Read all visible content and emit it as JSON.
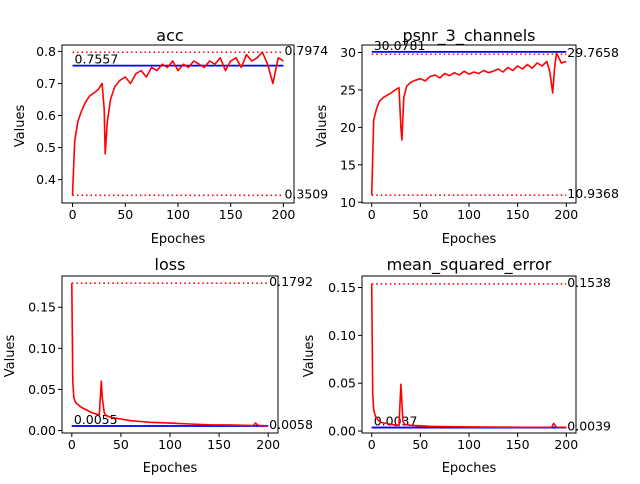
{
  "colors": {
    "curve": "#ff0000",
    "ref_dotted": "#ff0000",
    "reference": "#0000ff",
    "axes": "#000000"
  },
  "chart_data": [
    {
      "type": "line",
      "title": "acc",
      "xlabel": "Epoches",
      "ylabel": "Values",
      "xlim": [
        -10,
        210
      ],
      "ylim": [
        0.327,
        0.82
      ],
      "xticks": [
        0,
        50,
        100,
        150,
        200
      ],
      "yticks": [
        0.4,
        0.5,
        0.6,
        0.7,
        0.8
      ],
      "ytick_labels": [
        "0.4",
        "0.5",
        "0.6",
        "0.7",
        "0.8"
      ],
      "grid": false,
      "x": [
        0,
        2,
        5,
        8,
        12,
        16,
        20,
        24,
        28,
        30,
        31,
        33,
        36,
        40,
        45,
        50,
        55,
        60,
        65,
        70,
        75,
        80,
        85,
        90,
        95,
        100,
        105,
        110,
        115,
        120,
        125,
        130,
        135,
        140,
        145,
        150,
        155,
        160,
        165,
        170,
        175,
        180,
        185,
        190,
        195,
        200
      ],
      "series": [
        {
          "values": [
            0.3509,
            0.52,
            0.58,
            0.61,
            0.64,
            0.66,
            0.67,
            0.68,
            0.7,
            0.62,
            0.48,
            0.58,
            0.65,
            0.69,
            0.71,
            0.72,
            0.7,
            0.73,
            0.74,
            0.72,
            0.75,
            0.74,
            0.76,
            0.75,
            0.77,
            0.74,
            0.76,
            0.75,
            0.77,
            0.76,
            0.75,
            0.77,
            0.76,
            0.78,
            0.74,
            0.77,
            0.78,
            0.75,
            0.79,
            0.77,
            0.78,
            0.7974,
            0.76,
            0.7,
            0.78,
            0.77
          ]
        }
      ],
      "ref_lines": [
        {
          "kind": "dotted",
          "value": 0.7974,
          "label": "0.7974"
        },
        {
          "kind": "dotted",
          "value": 0.3509,
          "label": "0.3509"
        },
        {
          "kind": "solid",
          "value": 0.7557,
          "label": "0.7557"
        }
      ]
    },
    {
      "type": "line",
      "title": "psnr_3_channels",
      "xlabel": "Epoches",
      "ylabel": "Values",
      "xlim": [
        -10,
        210
      ],
      "ylim": [
        9.9,
        31.0
      ],
      "xticks": [
        0,
        50,
        100,
        150,
        200
      ],
      "yticks": [
        10,
        15,
        20,
        25,
        30
      ],
      "ytick_labels": [
        "10",
        "15",
        "20",
        "25",
        "30"
      ],
      "grid": false,
      "x": [
        0,
        2,
        5,
        8,
        12,
        16,
        20,
        24,
        28,
        30,
        31,
        33,
        36,
        40,
        45,
        50,
        55,
        60,
        65,
        70,
        75,
        80,
        85,
        90,
        95,
        100,
        105,
        110,
        115,
        120,
        125,
        130,
        135,
        140,
        145,
        150,
        155,
        160,
        165,
        170,
        175,
        180,
        183,
        186,
        188,
        190,
        195,
        200
      ],
      "series": [
        {
          "values": [
            10.9368,
            21.0,
            22.5,
            23.5,
            24.0,
            24.3,
            24.6,
            25.0,
            25.3,
            20.0,
            18.3,
            24.0,
            25.5,
            26.0,
            26.3,
            26.5,
            26.2,
            26.8,
            27.0,
            26.6,
            27.2,
            26.9,
            27.3,
            27.0,
            27.5,
            27.1,
            27.4,
            27.2,
            27.6,
            27.3,
            27.5,
            27.8,
            27.4,
            28.0,
            27.6,
            28.2,
            27.8,
            28.4,
            27.9,
            28.6,
            28.2,
            28.8,
            27.5,
            24.6,
            28.0,
            29.9,
            28.6,
            28.8
          ]
        }
      ],
      "ref_lines": [
        {
          "kind": "dotted",
          "value": 29.7658,
          "label": "29.7658"
        },
        {
          "kind": "dotted",
          "value": 10.9368,
          "label": "10.9368"
        },
        {
          "kind": "solid",
          "value": 30.0781,
          "label": "30.0781"
        }
      ]
    },
    {
      "type": "line",
      "title": "loss",
      "xlabel": "Epoches",
      "ylabel": "Values",
      "xlim": [
        -10,
        210
      ],
      "ylim": [
        -0.003,
        0.188
      ],
      "xticks": [
        0,
        50,
        100,
        150,
        200
      ],
      "yticks": [
        0.0,
        0.05,
        0.1,
        0.15
      ],
      "ytick_labels": [
        "0.00",
        "0.05",
        "0.10",
        "0.15"
      ],
      "grid": false,
      "x": [
        0,
        1,
        2,
        4,
        7,
        10,
        15,
        20,
        25,
        28,
        30,
        31,
        33,
        35,
        40,
        50,
        60,
        70,
        80,
        100,
        120,
        140,
        160,
        180,
        185,
        187,
        190,
        200
      ],
      "series": [
        {
          "values": [
            0.1792,
            0.06,
            0.04,
            0.034,
            0.031,
            0.028,
            0.025,
            0.022,
            0.02,
            0.019,
            0.06,
            0.04,
            0.022,
            0.018,
            0.016,
            0.014,
            0.012,
            0.011,
            0.01,
            0.009,
            0.008,
            0.007,
            0.0068,
            0.0062,
            0.006,
            0.009,
            0.0062,
            0.0058
          ]
        }
      ],
      "ref_lines": [
        {
          "kind": "dotted",
          "value": 0.1792,
          "label": "0.1792"
        },
        {
          "kind": "dotted",
          "value": 0.0058,
          "label": "0.0058"
        },
        {
          "kind": "solid",
          "value": 0.0055,
          "label": "0.0055"
        }
      ]
    },
    {
      "type": "line",
      "title": "mean_squared_error",
      "xlabel": "Epoches",
      "ylabel": "Values",
      "xlim": [
        -10,
        210
      ],
      "ylim": [
        -0.002,
        0.162
      ],
      "xticks": [
        0,
        50,
        100,
        150,
        200
      ],
      "yticks": [
        0.0,
        0.05,
        0.1,
        0.15
      ],
      "ytick_labels": [
        "0.00",
        "0.05",
        "0.10",
        "0.15"
      ],
      "grid": false,
      "x": [
        0,
        1,
        2,
        4,
        7,
        10,
        15,
        20,
        25,
        28,
        30,
        31,
        32,
        34,
        40,
        50,
        60,
        70,
        80,
        100,
        120,
        140,
        160,
        180,
        185,
        187,
        190,
        200
      ],
      "series": [
        {
          "values": [
            0.1538,
            0.04,
            0.022,
            0.015,
            0.011,
            0.009,
            0.008,
            0.007,
            0.006,
            0.006,
            0.049,
            0.03,
            0.01,
            0.007,
            0.006,
            0.0055,
            0.005,
            0.0048,
            0.0046,
            0.0044,
            0.0042,
            0.0041,
            0.004,
            0.004,
            0.004,
            0.008,
            0.0041,
            0.0039
          ]
        }
      ],
      "ref_lines": [
        {
          "kind": "dotted",
          "value": 0.1538,
          "label": "0.1538"
        },
        {
          "kind": "dotted",
          "value": 0.0039,
          "label": "0.0039"
        },
        {
          "kind": "solid",
          "value": 0.0037,
          "label": "0.0037"
        }
      ]
    }
  ]
}
